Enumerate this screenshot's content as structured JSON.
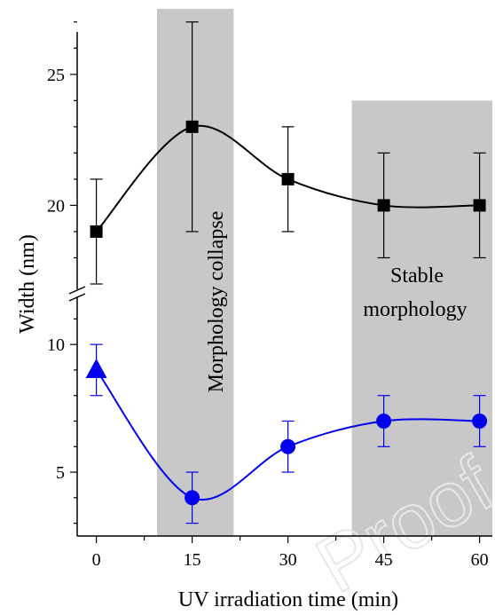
{
  "chart_data": {
    "type": "line",
    "xlabel": "UV irradiation time (min)",
    "ylabel": "Width (nm)",
    "x_ticks": [
      "0",
      "15",
      "30",
      "45",
      "60"
    ],
    "y_ticks_upper": [
      "20",
      "25"
    ],
    "y_ticks_lower": [
      "5",
      "10"
    ],
    "xlim": [
      -3,
      62
    ],
    "ylim_lower": [
      2.5,
      11.5
    ],
    "ylim_upper": [
      17,
      27.5
    ],
    "axis_break": true,
    "annotations": {
      "collapse": "Morphology collapse",
      "stable_line1": "Stable",
      "stable_line2": "morphology"
    },
    "shaded_regions": [
      {
        "x_start": 9.5,
        "x_end": 21.5,
        "top": "full"
      },
      {
        "x_start": 40,
        "x_end": 62,
        "top": 24
      }
    ],
    "series": [
      {
        "marker": "square",
        "color": "#000000",
        "axis": "upper",
        "x": [
          0,
          15,
          30,
          45,
          60
        ],
        "y": [
          19,
          23,
          21,
          20,
          20
        ],
        "err": [
          2,
          4,
          2,
          2,
          2
        ]
      },
      {
        "marker": "circle",
        "color": "#0000ee",
        "axis": "lower",
        "x": [
          15,
          30,
          45,
          60
        ],
        "y": [
          4,
          6,
          7,
          7
        ],
        "err": [
          1,
          1,
          1,
          1
        ],
        "first_point": {
          "marker": "triangle",
          "x": 0,
          "y": 9,
          "err": 1
        }
      }
    ],
    "watermark": "Proof"
  }
}
